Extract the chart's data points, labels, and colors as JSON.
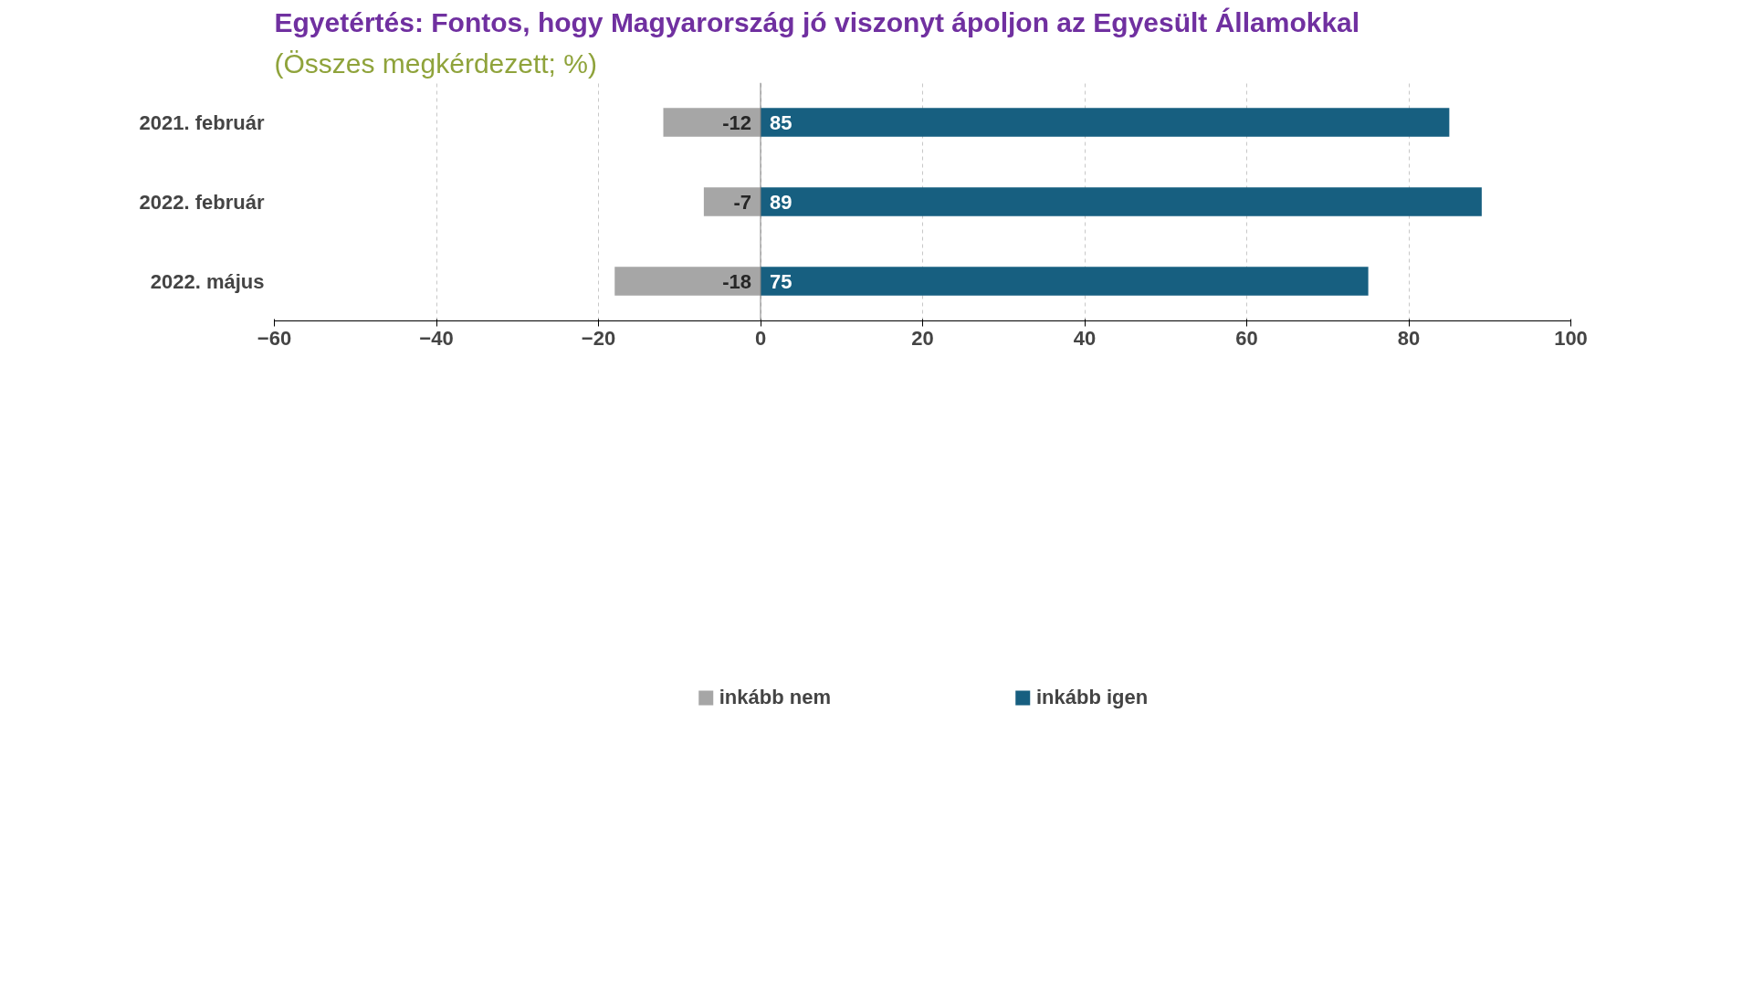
{
  "chart_data": {
    "type": "bar",
    "orientation": "horizontal",
    "stacked": true,
    "title": "Egyetértés: Fontos, hogy Magyarország jó viszonyt ápoljon az Egyesült Államokkal",
    "subtitle": "(Összes megkérdezett; %)",
    "categories": [
      "2021. február",
      "2022. február",
      "2022. május"
    ],
    "series": [
      {
        "name": "inkább nem",
        "color": "#a6a6a6",
        "values": [
          -12,
          -7,
          -18
        ]
      },
      {
        "name": "inkább igen",
        "color": "#175f80",
        "values": [
          85,
          89,
          75
        ]
      }
    ],
    "xlim": [
      -60,
      100
    ],
    "xticks": [
      -60,
      -40,
      -20,
      0,
      20,
      40,
      60,
      80,
      100
    ],
    "grid": "x",
    "legend": "bottom",
    "data_labels": true
  }
}
